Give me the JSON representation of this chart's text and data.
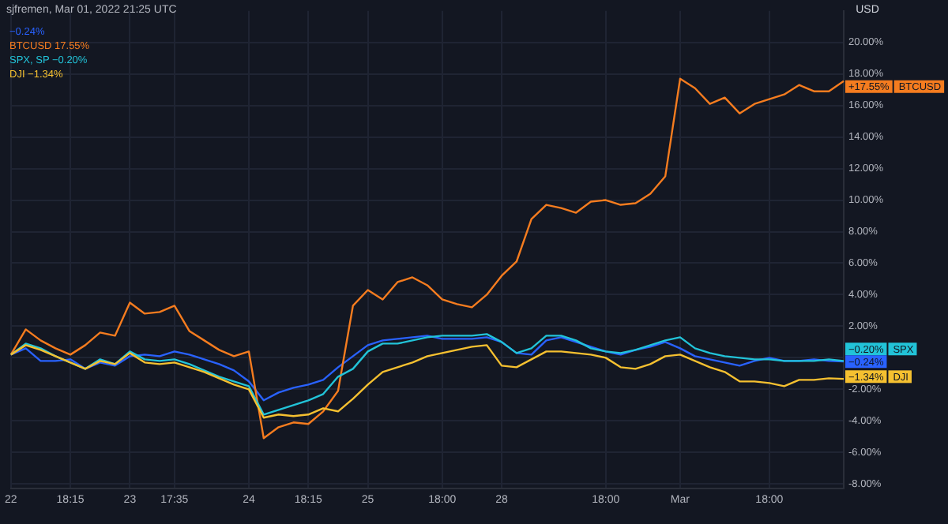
{
  "chart_data": {
    "type": "line",
    "title": "sjfremen, Mar 01, 2022 21:25 UTC",
    "ylabel": "USD",
    "categories": [
      "22",
      null,
      null,
      null,
      "18:15",
      null,
      null,
      null,
      "23",
      null,
      null,
      "17:35",
      null,
      null,
      null,
      null,
      "24",
      null,
      null,
      null,
      "18:15",
      null,
      null,
      null,
      "25",
      null,
      null,
      null,
      null,
      "18:00",
      null,
      null,
      null,
      "28",
      null,
      null,
      null,
      null,
      null,
      null,
      "18:00",
      null,
      null,
      null,
      null,
      "Mar",
      null,
      null,
      null,
      null,
      null,
      "18:00",
      null,
      null,
      null,
      null,
      null
    ],
    "ylim": [
      -8.3,
      22
    ],
    "yticks": [
      {
        "value": -8,
        "label": "-8.00%"
      },
      {
        "value": -6,
        "label": "-6.00%"
      },
      {
        "value": -4,
        "label": "-4.00%"
      },
      {
        "value": -2,
        "label": "-2.00%"
      },
      {
        "value": 0,
        "label": null
      },
      {
        "value": 2,
        "label": "2.00%"
      },
      {
        "value": 4,
        "label": "4.00%"
      },
      {
        "value": 6,
        "label": "6.00%"
      },
      {
        "value": 8,
        "label": "8.00%"
      },
      {
        "value": 10,
        "label": "10.00%"
      },
      {
        "value": 12,
        "label": "12.00%"
      },
      {
        "value": 14,
        "label": "14.00%"
      },
      {
        "value": 16,
        "label": "16.00%"
      },
      {
        "value": 18,
        "label": "18.00%"
      },
      {
        "value": 20,
        "label": "20.00%"
      }
    ],
    "grid": true,
    "legend": "top left",
    "marker": "none",
    "line_style": "solid",
    "series": [
      {
        "name": "−0.24%",
        "color": "#2962ff",
        "values": [
          0.2,
          0.6,
          -0.2,
          -0.2,
          -0.1,
          -0.7,
          -0.3,
          -0.5,
          0.1,
          0.2,
          0.1,
          0.4,
          0.2,
          -0.1,
          -0.4,
          -0.8,
          -1.5,
          -2.7,
          -2.2,
          -1.9,
          -1.7,
          -1.4,
          -0.6,
          0.1,
          0.8,
          1.1,
          1.2,
          1.3,
          1.4,
          1.2,
          1.2,
          1.2,
          1.3,
          1.0,
          0.3,
          0.2,
          1.1,
          1.3,
          1.0,
          0.7,
          0.4,
          0.2,
          0.5,
          0.7,
          1.0,
          0.6,
          0.1,
          -0.1,
          -0.3,
          -0.5,
          -0.2,
          0,
          -0.2,
          -0.2,
          -0.1,
          -0.2,
          -0.24
        ],
        "value_labels": [
          null,
          null,
          null,
          null,
          null,
          null,
          null,
          null,
          null,
          null,
          null,
          null,
          null,
          null,
          null,
          null,
          null,
          null,
          null,
          null,
          null,
          null,
          null,
          null,
          null,
          null,
          null,
          null,
          null,
          null,
          null,
          null,
          null,
          null,
          null,
          null,
          null,
          null,
          null,
          null,
          null,
          null,
          null,
          null,
          null,
          null,
          null,
          null,
          null,
          null,
          null,
          null,
          null,
          null,
          null,
          null,
          "−0.24%"
        ]
      },
      {
        "name": "BTCUSD 17.55%",
        "color": "#f57c1f",
        "values": [
          0.2,
          1.8,
          1.1,
          0.6,
          0.2,
          0.8,
          1.6,
          1.4,
          3.5,
          2.8,
          2.9,
          3.3,
          1.7,
          1.1,
          0.5,
          0.1,
          0.4,
          -5.1,
          -4.4,
          -4.1,
          -4.2,
          -3.4,
          -2.1,
          3.3,
          4.3,
          3.7,
          4.8,
          5.1,
          4.6,
          3.7,
          3.4,
          3.2,
          4.0,
          5.2,
          6.1,
          8.8,
          9.7,
          9.5,
          9.2,
          9.9,
          10.0,
          9.7,
          9.8,
          10.4,
          11.5,
          17.7,
          17.1,
          16.1,
          16.5,
          15.5,
          16.1,
          16.4,
          16.7,
          17.3,
          16.9,
          16.9,
          17.55
        ],
        "value_labels": [
          null,
          null,
          null,
          null,
          null,
          null,
          null,
          null,
          null,
          null,
          null,
          null,
          null,
          null,
          null,
          null,
          null,
          null,
          null,
          null,
          null,
          null,
          null,
          null,
          null,
          null,
          null,
          null,
          null,
          null,
          null,
          null,
          null,
          null,
          null,
          null,
          null,
          null,
          null,
          null,
          null,
          null,
          null,
          null,
          null,
          null,
          null,
          null,
          null,
          null,
          null,
          null,
          null,
          null,
          null,
          null,
          "+17.55%"
        ]
      },
      {
        "name": "SPX, SP −0.20%",
        "color": "#22c3d8",
        "values": [
          0.2,
          0.9,
          0.6,
          0.1,
          -0.3,
          -0.7,
          -0.1,
          -0.4,
          0.4,
          -0.1,
          -0.2,
          -0.1,
          -0.4,
          -0.8,
          -1.2,
          -1.5,
          -1.8,
          -3.6,
          -3.3,
          -3.0,
          -2.7,
          -2.3,
          -1.2,
          -0.7,
          0.4,
          0.9,
          0.9,
          1.1,
          1.3,
          1.4,
          1.4,
          1.4,
          1.5,
          1.0,
          0.3,
          0.6,
          1.4,
          1.4,
          1.1,
          0.6,
          0.4,
          0.3,
          0.5,
          0.8,
          1.1,
          1.3,
          0.6,
          0.3,
          0.1,
          0,
          -0.1,
          -0.1,
          -0.2,
          -0.2,
          -0.2,
          -0.1,
          -0.2
        ],
        "value_labels": [
          null,
          null,
          null,
          null,
          null,
          null,
          null,
          null,
          null,
          null,
          null,
          null,
          null,
          null,
          null,
          null,
          null,
          null,
          null,
          null,
          null,
          null,
          null,
          null,
          null,
          null,
          null,
          null,
          null,
          null,
          null,
          null,
          null,
          null,
          null,
          null,
          null,
          null,
          null,
          null,
          null,
          null,
          null,
          null,
          null,
          null,
          null,
          null,
          null,
          null,
          null,
          null,
          null,
          null,
          null,
          null,
          "−0.20%"
        ]
      },
      {
        "name": "DJI −1.34%",
        "color": "#f5c030",
        "values": [
          0.2,
          0.8,
          0.5,
          0.1,
          -0.3,
          -0.7,
          -0.2,
          -0.4,
          0.3,
          -0.3,
          -0.4,
          -0.3,
          -0.6,
          -0.9,
          -1.3,
          -1.7,
          -2.0,
          -3.8,
          -3.6,
          -3.7,
          -3.6,
          -3.2,
          -3.4,
          -2.6,
          -1.7,
          -0.9,
          -0.6,
          -0.3,
          0.1,
          0.3,
          0.5,
          0.7,
          0.8,
          -0.5,
          -0.6,
          -0.1,
          0.4,
          0.4,
          0.3,
          0.2,
          0,
          -0.6,
          -0.7,
          -0.4,
          0.1,
          0.2,
          -0.2,
          -0.6,
          -0.9,
          -1.5,
          -1.5,
          -1.6,
          -1.8,
          -1.4,
          -1.4,
          -1.3,
          -1.34
        ],
        "value_labels": [
          null,
          null,
          null,
          null,
          null,
          null,
          null,
          null,
          null,
          null,
          null,
          null,
          null,
          null,
          null,
          null,
          null,
          null,
          null,
          null,
          null,
          null,
          null,
          null,
          null,
          null,
          null,
          null,
          null,
          null,
          null,
          null,
          null,
          null,
          null,
          null,
          null,
          null,
          null,
          null,
          null,
          null,
          null,
          null,
          null,
          null,
          null,
          null,
          null,
          null,
          null,
          null,
          null,
          null,
          null,
          null,
          "−1.34%"
        ]
      }
    ],
    "annotations": [
      "BTCUSD",
      "SPX",
      "DJI"
    ]
  }
}
